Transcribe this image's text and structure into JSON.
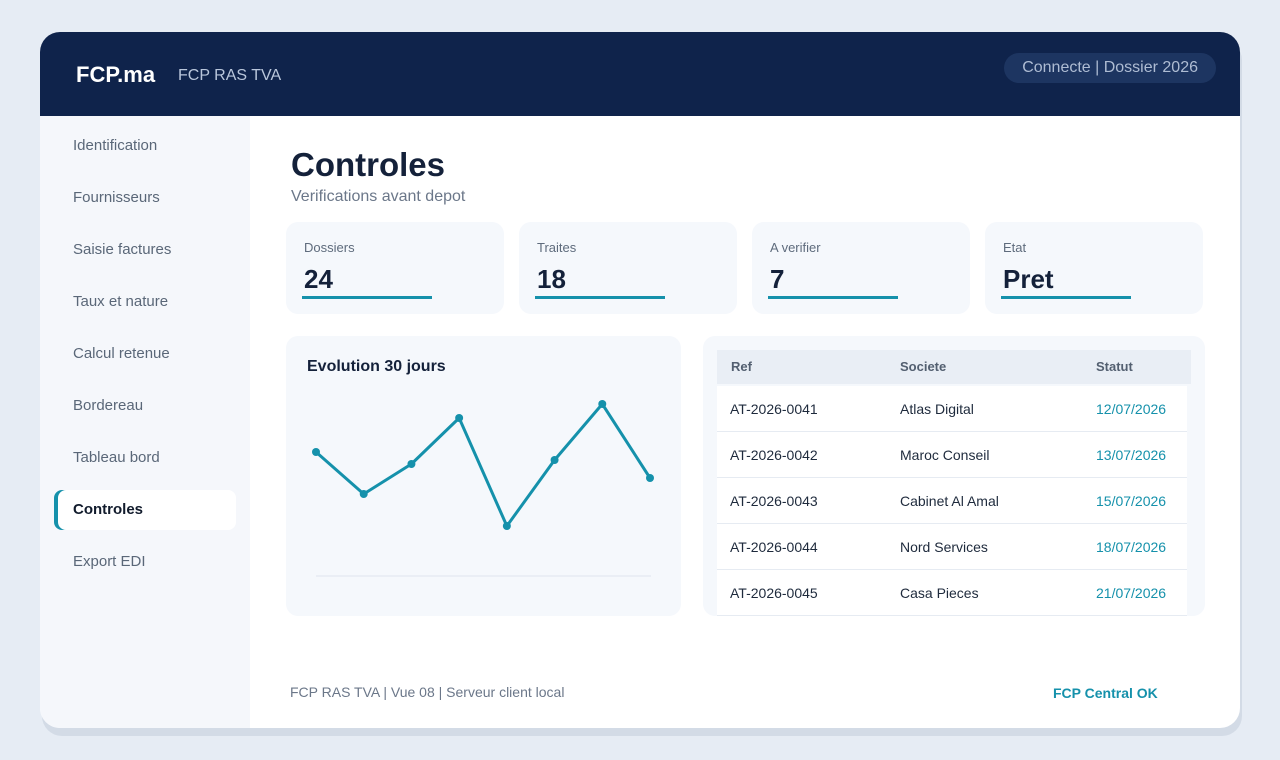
{
  "header": {
    "brand": "FCP.ma",
    "subtitle": "FCP RAS TVA",
    "status": "Connecte | Dossier 2026"
  },
  "sidebar": {
    "items": [
      {
        "label": "Identification",
        "active": false
      },
      {
        "label": "Fournisseurs",
        "active": false
      },
      {
        "label": "Saisie factures",
        "active": false
      },
      {
        "label": "Taux et nature",
        "active": false
      },
      {
        "label": "Calcul retenue",
        "active": false
      },
      {
        "label": "Bordereau",
        "active": false
      },
      {
        "label": "Tableau bord",
        "active": false
      },
      {
        "label": "Controles",
        "active": true
      },
      {
        "label": "Export EDI",
        "active": false
      }
    ]
  },
  "main": {
    "title": "Controles",
    "subtitle": "Verifications avant depot"
  },
  "kpis": [
    {
      "label": "Dossiers",
      "value": "24"
    },
    {
      "label": "Traites",
      "value": "18"
    },
    {
      "label": "A verifier",
      "value": "7"
    },
    {
      "label": "Etat",
      "value": "Pret"
    }
  ],
  "chart": {
    "title": "Evolution 30 jours",
    "color": "#1591ab"
  },
  "chart_data": {
    "type": "line",
    "title": "Evolution 30 jours",
    "x": [
      1,
      2,
      3,
      4,
      5,
      6,
      7,
      8
    ],
    "values": [
      62,
      41,
      56,
      79,
      25,
      58,
      86,
      49
    ],
    "ylim": [
      0,
      100
    ],
    "grid": false,
    "legend": "none"
  },
  "table": {
    "columns": [
      "Ref",
      "Societe",
      "Statut"
    ],
    "rows": [
      {
        "ref": "AT-2026-0041",
        "societe": "Atlas Digital",
        "statut": "12/07/2026"
      },
      {
        "ref": "AT-2026-0042",
        "societe": "Maroc Conseil",
        "statut": "13/07/2026"
      },
      {
        "ref": "AT-2026-0043",
        "societe": "Cabinet Al Amal",
        "statut": "15/07/2026"
      },
      {
        "ref": "AT-2026-0044",
        "societe": "Nord Services",
        "statut": "18/07/2026"
      },
      {
        "ref": "AT-2026-0045",
        "societe": "Casa Pieces",
        "statut": "21/07/2026"
      }
    ]
  },
  "footer": {
    "left": "FCP RAS TVA | Vue 08 | Serveur client local",
    "right": "FCP Central OK"
  }
}
